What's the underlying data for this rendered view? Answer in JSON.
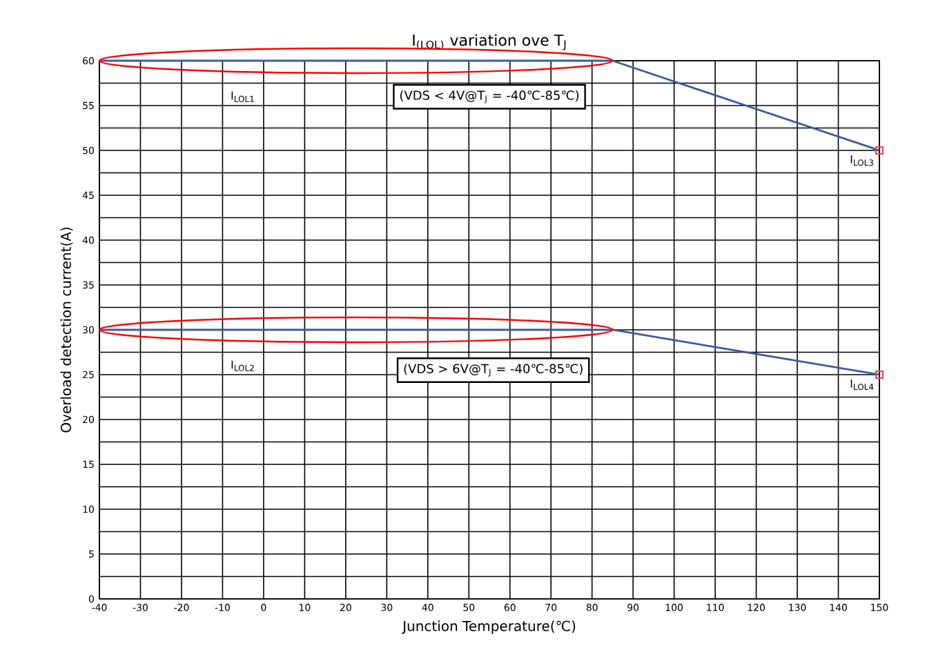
{
  "chart_data": {
    "type": "line",
    "title": "I$_{(LOL)}$ variation ove T$_{J}$",
    "xlabel": "Junction Temperature(℃)",
    "ylabel": "Overload detection current(A)",
    "series": [
      {
        "color": "#3c5a9e",
        "x": [
          -40,
          85,
          150
        ],
        "values": [
          60,
          60,
          50
        ]
      },
      {
        "color": "#3c5a9e",
        "x": [
          -40,
          85,
          150
        ],
        "values": [
          30,
          30,
          25
        ]
      },
      {
        "type": "scatter",
        "color": "#e8454f",
        "marker": "square",
        "x": [
          150,
          150
        ],
        "values": [
          50,
          25
        ]
      }
    ],
    "annotations": [
      "I$_{LOL1}$",
      "(VDS < 4V@T$_{J}$ = -40℃-85℃)",
      {
        "text": "I$_{LOL3}$",
        "x": 150,
        "y": 50
      },
      "I$_{LOL2}$",
      "(VDS > 6V@T$_{J}$ = -40℃-85℃)",
      {
        "text": "I$_{LOL4}$",
        "x": 150,
        "y": 25
      }
    ],
    "xlim": [
      -40,
      150
    ],
    "xticks": [
      -40,
      -30,
      -20,
      -10,
      0,
      10,
      20,
      30,
      40,
      50,
      60,
      70,
      80,
      90,
      100,
      110,
      120,
      130,
      140,
      150
    ],
    "ylim": [
      0,
      60
    ],
    "yticks": [
      0,
      {
        "value": 2.5,
        "label": null
      },
      5,
      {
        "value": 7.5,
        "label": null
      },
      10,
      {
        "value": 12.5,
        "label": null
      },
      15,
      {
        "value": 17.5,
        "label": null
      },
      20,
      {
        "value": 22.5,
        "label": null
      },
      25,
      {
        "value": 27.5,
        "label": null
      },
      30,
      {
        "value": 32.5,
        "label": null
      },
      35,
      {
        "value": 37.5,
        "label": null
      },
      40,
      {
        "value": 42.5,
        "label": null
      },
      45,
      {
        "value": 47.5,
        "label": null
      },
      50,
      {
        "value": 52.5,
        "label": null
      },
      55,
      {
        "value": 57.5,
        "label": null
      },
      60
    ],
    "grid": true,
    "marker": "none",
    "line_style": "solid"
  }
}
